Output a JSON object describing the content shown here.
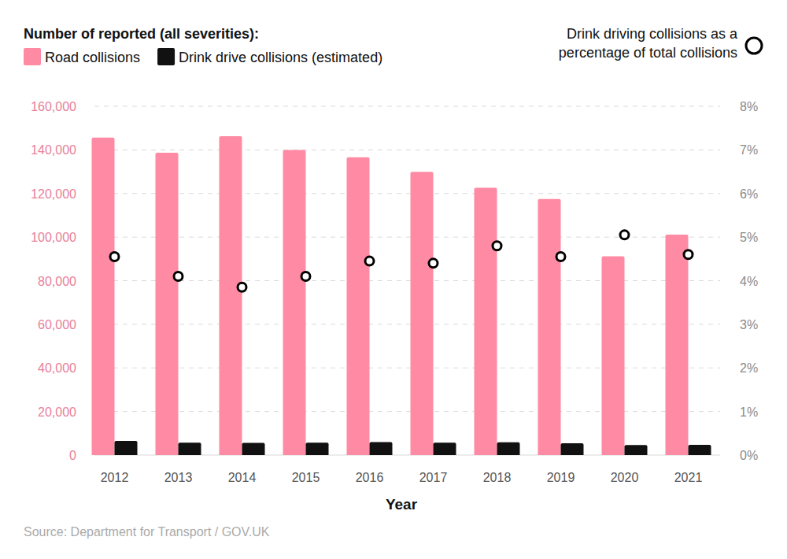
{
  "chart_data": {
    "type": "bar",
    "title": "Number of reported (all severities):",
    "x_label": "Year",
    "source": "Source: Department for Transport / GOV.UK",
    "categories": [
      "2012",
      "2013",
      "2014",
      "2015",
      "2016",
      "2017",
      "2018",
      "2019",
      "2020",
      "2021"
    ],
    "series": [
      {
        "name": "Road collisions",
        "type": "bar",
        "color": "#ff8aa3",
        "values": [
          145600,
          138700,
          146300,
          140000,
          136600,
          129900,
          122600,
          117500,
          91200,
          101100
        ]
      },
      {
        "name": "Drink drive collisions (estimated)",
        "type": "bar",
        "color": "#111111",
        "values": [
          6500,
          5700,
          5600,
          5700,
          6000,
          5700,
          5900,
          5400,
          4600,
          4700
        ]
      },
      {
        "name": "Drink driving collisions as a percentage of total collisions",
        "type": "scatter",
        "marker": "circle",
        "color": "#000000",
        "axis": "y2",
        "values": [
          4.55,
          4.1,
          3.85,
          4.1,
          4.45,
          4.4,
          4.8,
          4.55,
          5.05,
          4.6
        ]
      }
    ],
    "ylim": [
      0,
      160000
    ],
    "yticks": [
      0,
      {
        "value": 20000,
        "label": "20,000"
      },
      {
        "value": 40000,
        "label": "40,000"
      },
      {
        "value": 60000,
        "label": "60,000"
      },
      {
        "value": 80000,
        "label": "80,000"
      },
      {
        "value": 100000,
        "label": "100,000"
      },
      {
        "value": 120000,
        "label": "120,000"
      },
      {
        "value": 140000,
        "label": "140,000"
      },
      {
        "value": 160000,
        "label": "160,000"
      }
    ],
    "y2lim": [
      0,
      8
    ],
    "y2ticks": [
      {
        "value": 0,
        "label": "0%"
      },
      {
        "value": 1,
        "label": "1%"
      },
      {
        "value": 2,
        "label": "2%"
      },
      {
        "value": 3,
        "label": "3%"
      },
      {
        "value": 4,
        "label": "4%"
      },
      {
        "value": 5,
        "label": "5%"
      },
      {
        "value": 6,
        "label": "6%"
      },
      {
        "value": 7,
        "label": "7%"
      },
      {
        "value": 8,
        "label": "8%"
      }
    ],
    "grid": true
  }
}
